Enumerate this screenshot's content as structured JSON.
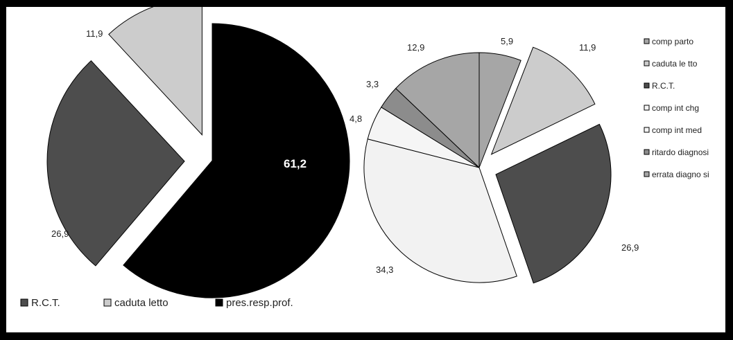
{
  "chart_data": [
    {
      "type": "pie",
      "slices": [
        {
          "label": "pres.resp.prof.",
          "value": 61.2,
          "value_label": "61,2",
          "color": "#000000",
          "exploded": false
        },
        {
          "label": "R.C.T.",
          "value": 26.9,
          "value_label": "26,9",
          "color": "#4d4d4d",
          "exploded": true
        },
        {
          "label": "caduta letto",
          "value": 11.9,
          "value_label": "11,9",
          "color": "#cccccc",
          "exploded": true
        }
      ],
      "legend": {
        "position": "bottom",
        "items": [
          {
            "label": "R.C.T.",
            "color": "#4d4d4d"
          },
          {
            "label": "caduta letto",
            "color": "#cccccc"
          },
          {
            "label": "pres.resp.prof.",
            "color": "#000000"
          }
        ]
      }
    },
    {
      "type": "pie",
      "slices": [
        {
          "label": "comp parto",
          "value": 5.9,
          "value_label": "5,9",
          "color": "#a6a6a6",
          "exploded": false
        },
        {
          "label": "caduta letto",
          "value": 11.9,
          "value_label": "11,9",
          "color": "#cccccc",
          "exploded": true
        },
        {
          "label": "R.C.T.",
          "value": 26.9,
          "value_label": "26,9",
          "color": "#4d4d4d",
          "exploded": true
        },
        {
          "label": "comp int med",
          "value": 34.3,
          "value_label": "34,3",
          "color": "#f2f2f2",
          "exploded": false
        },
        {
          "label": "comp int chg",
          "value": 4.8,
          "value_label": "4,8",
          "color": "#f5f5f5",
          "exploded": false
        },
        {
          "label": "ritardo diagnosi",
          "value": 3.3,
          "value_label": "3,3",
          "color": "#8c8c8c",
          "exploded": false
        },
        {
          "label": "errata diagnosi",
          "value": 12.9,
          "value_label": "12,9",
          "color": "#a6a6a6",
          "exploded": false
        }
      ],
      "legend": {
        "position": "right",
        "items": [
          {
            "label": "comp parto",
            "color": "#a6a6a6"
          },
          {
            "label": "caduta le tto",
            "color": "#cccccc"
          },
          {
            "label": "R.C.T.",
            "color": "#4d4d4d"
          },
          {
            "label": "comp int chg",
            "color": "#f5f5f5"
          },
          {
            "label": "comp int med",
            "color": "#f5f5f5"
          },
          {
            "label": "ritardo diagnosi",
            "color": "#8c8c8c"
          },
          {
            "label": "errata diagno si",
            "color": "#a6a6a6"
          }
        ]
      }
    }
  ]
}
